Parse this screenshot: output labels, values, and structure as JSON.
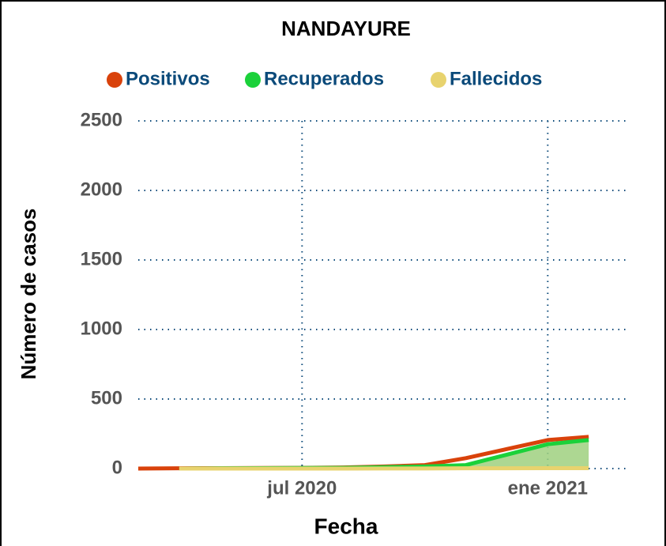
{
  "chart_data": {
    "type": "line",
    "title": "NANDAYURE",
    "xlabel": "Fecha",
    "ylabel": "Número de casos",
    "x": [
      "2020-03",
      "2020-04",
      "2020-05",
      "2020-06",
      "2020-07",
      "2020-08",
      "2020-09",
      "2020-10",
      "2020-11",
      "2020-12",
      "2021-01",
      "2021-02"
    ],
    "series": [
      {
        "name": "Positivos",
        "color": "#d9420b",
        "values": [
          0,
          2,
          3,
          4,
          5,
          8,
          15,
          25,
          75,
          140,
          205,
          228
        ]
      },
      {
        "name": "Recuperados",
        "color": "#1bd13a",
        "fill": "#9fd07f",
        "values": [
          null,
          0,
          2,
          3,
          4,
          5,
          10,
          15,
          25,
          100,
          175,
          205
        ]
      },
      {
        "name": "Fallecidos",
        "color": "#e8d36e",
        "values": [
          null,
          0,
          0,
          0,
          0,
          0,
          1,
          1,
          2,
          2,
          3,
          3
        ]
      }
    ],
    "xlim": [
      "2020-03",
      "2021-03"
    ],
    "xticks": [
      {
        "value": "2020-07",
        "label": "jul 2020"
      },
      {
        "value": "2021-01",
        "label": "ene 2021"
      }
    ],
    "ylim": [
      0,
      2500
    ],
    "yticks": [
      0,
      500,
      1000,
      1500,
      2000,
      2500
    ],
    "grid": true,
    "legend": "top"
  }
}
